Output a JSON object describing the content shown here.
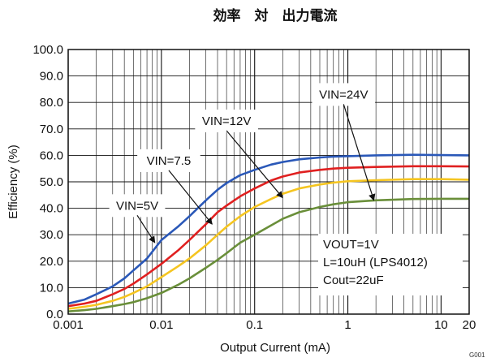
{
  "chart_data": {
    "type": "line",
    "title": "効率　対　出力電流",
    "xlabel": "Output Current (mA)",
    "ylabel": "Efficiency (%)",
    "x_scale": "log",
    "xlim": [
      0.001,
      20
    ],
    "ylim": [
      0,
      100
    ],
    "x_ticks": [
      {
        "value": 0.001,
        "label": "0.001"
      },
      {
        "value": 0.01,
        "label": "0.01"
      },
      {
        "value": 0.1,
        "label": "0.1"
      },
      {
        "value": 1,
        "label": "1"
      },
      {
        "value": 10,
        "label": "10"
      },
      {
        "value": 20,
        "label": "20"
      }
    ],
    "y_ticks": [
      {
        "value": 0,
        "label": "0.0"
      },
      {
        "value": 10,
        "label": "10.0"
      },
      {
        "value": 20,
        "label": "20.0"
      },
      {
        "value": 30,
        "label": "30.0"
      },
      {
        "value": 40,
        "label": "40.0"
      },
      {
        "value": 50,
        "label": "50.0"
      },
      {
        "value": 60,
        "label": "60.0"
      },
      {
        "value": 70,
        "label": "70.0"
      },
      {
        "value": 80,
        "label": "80.0"
      },
      {
        "value": 90,
        "label": "90.0"
      },
      {
        "value": 100,
        "label": "100.0"
      }
    ],
    "grid": true,
    "figure_id": "G001",
    "series": [
      {
        "name": "VIN=5V",
        "color": "#2a58b8",
        "x": [
          0.001,
          0.0015,
          0.002,
          0.003,
          0.004,
          0.005,
          0.007,
          0.01,
          0.015,
          0.02,
          0.03,
          0.04,
          0.05,
          0.07,
          0.1,
          0.15,
          0.2,
          0.3,
          0.5,
          0.7,
          1,
          2,
          5,
          10,
          20
        ],
        "y": [
          4,
          5.5,
          7.5,
          10.5,
          13.5,
          16.5,
          21,
          28,
          33,
          37,
          43,
          47,
          49.5,
          52.5,
          54.5,
          56.5,
          57.5,
          58.5,
          59.2,
          59.5,
          59.7,
          60,
          60.2,
          60.1,
          60
        ]
      },
      {
        "name": "VIN=7.5",
        "color": "#e02020",
        "x": [
          0.001,
          0.0015,
          0.002,
          0.003,
          0.004,
          0.005,
          0.007,
          0.01,
          0.015,
          0.02,
          0.03,
          0.04,
          0.05,
          0.07,
          0.1,
          0.15,
          0.2,
          0.3,
          0.5,
          0.7,
          1,
          2,
          5,
          10,
          20
        ],
        "y": [
          3,
          4,
          5,
          7.5,
          9.5,
          11.5,
          15,
          19,
          24,
          28,
          34,
          38.5,
          41,
          44.5,
          47.5,
          50.5,
          52,
          53.5,
          54.5,
          55,
          55.3,
          55.6,
          55.9,
          55.9,
          55.8
        ]
      },
      {
        "name": "VIN=12V",
        "color": "#f5c520",
        "x": [
          0.001,
          0.0015,
          0.002,
          0.003,
          0.004,
          0.005,
          0.007,
          0.01,
          0.015,
          0.02,
          0.03,
          0.04,
          0.05,
          0.07,
          0.1,
          0.15,
          0.2,
          0.3,
          0.5,
          0.7,
          1,
          2,
          5,
          10,
          20
        ],
        "y": [
          2,
          2.8,
          3.5,
          5,
          6.5,
          8,
          10.5,
          14,
          18,
          21,
          26,
          30,
          33,
          37,
          40.5,
          43.5,
          45.5,
          47.5,
          49,
          49.7,
          50.2,
          50.6,
          51,
          51,
          50.8
        ]
      },
      {
        "name": "VIN=24V",
        "color": "#6a8f3a",
        "x": [
          0.001,
          0.0015,
          0.002,
          0.003,
          0.004,
          0.005,
          0.007,
          0.01,
          0.015,
          0.02,
          0.03,
          0.04,
          0.05,
          0.07,
          0.1,
          0.15,
          0.2,
          0.3,
          0.5,
          0.7,
          1,
          2,
          5,
          10,
          20
        ],
        "y": [
          1,
          1.5,
          2,
          3,
          3.8,
          4.5,
          6,
          8,
          11,
          13.5,
          17.5,
          20.5,
          23,
          27,
          30,
          33.5,
          36,
          38.5,
          40.5,
          41.5,
          42.3,
          43,
          43.5,
          43.6,
          43.6
        ]
      }
    ],
    "annotations": [
      {
        "text": "VIN=5V",
        "x": 0.0055,
        "y": 41,
        "arrow_to": [
          0.0085,
          27
        ]
      },
      {
        "text": "VIN=7.5",
        "x": 0.012,
        "y": 58,
        "arrow_to": [
          0.035,
          34
        ]
      },
      {
        "text": "VIN=12V",
        "x": 0.05,
        "y": 73,
        "arrow_to": [
          0.2,
          44
        ]
      },
      {
        "text": "VIN=24V",
        "x": 0.9,
        "y": 83,
        "arrow_to": [
          1.9,
          43
        ]
      }
    ],
    "note_lines": [
      "VOUT=1V",
      "L=10uH (LPS4012)",
      "Cout=22uF"
    ]
  }
}
